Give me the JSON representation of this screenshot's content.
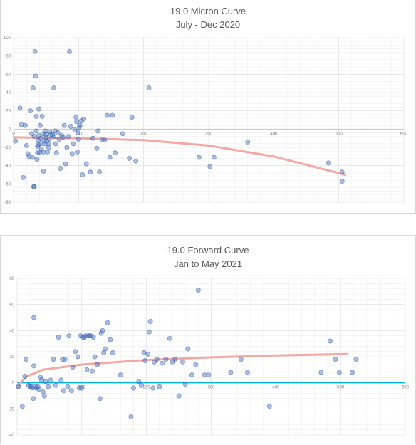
{
  "chart_data": [
    {
      "type": "scatter",
      "title": "19.0 Micron Curve",
      "subtitle": "July - Dec 2020",
      "xlim": [
        0,
        600
      ],
      "ylim": [
        -80,
        100
      ],
      "xticks": [
        "0",
        "100",
        "200",
        "300",
        "400",
        "500",
        "600"
      ],
      "yticks": [
        "100",
        "80",
        "60",
        "40",
        "20",
        "0",
        "-20",
        "-40",
        "-60",
        "-80"
      ],
      "grid": true,
      "marker_color": "#4472c4",
      "trendline_color": "#f4a7a3",
      "trendline": {
        "type": "polynomial",
        "x": [
          0,
          100,
          200,
          300,
          400,
          510
        ],
        "y": [
          -9,
          -10,
          -12,
          -18,
          -30,
          -50
        ]
      },
      "points": [
        [
          3,
          -13
        ],
        [
          10,
          23
        ],
        [
          12,
          5
        ],
        [
          15,
          -53
        ],
        [
          18,
          4
        ],
        [
          20,
          -18
        ],
        [
          22,
          -27
        ],
        [
          24,
          -30
        ],
        [
          26,
          20
        ],
        [
          28,
          -5
        ],
        [
          29,
          -31
        ],
        [
          30,
          45
        ],
        [
          31,
          -63
        ],
        [
          32,
          -63
        ],
        [
          32,
          -8
        ],
        [
          33,
          85
        ],
        [
          34,
          58
        ],
        [
          35,
          -2
        ],
        [
          35,
          14
        ],
        [
          36,
          -33
        ],
        [
          37,
          -26
        ],
        [
          37,
          -19
        ],
        [
          38,
          -17
        ],
        [
          38,
          -12
        ],
        [
          39,
          -7
        ],
        [
          39,
          22
        ],
        [
          40,
          -26
        ],
        [
          41,
          4
        ],
        [
          42,
          -10
        ],
        [
          42,
          -16
        ],
        [
          43,
          -22
        ],
        [
          44,
          14
        ],
        [
          45,
          -5
        ],
        [
          46,
          -25
        ],
        [
          46,
          -46
        ],
        [
          47,
          -13
        ],
        [
          48,
          -16
        ],
        [
          49,
          -2
        ],
        [
          50,
          -6
        ],
        [
          50,
          -9
        ],
        [
          51,
          -13
        ],
        [
          52,
          -25
        ],
        [
          53,
          -16
        ],
        [
          54,
          -20
        ],
        [
          55,
          -11
        ],
        [
          56,
          -3
        ],
        [
          57,
          -6
        ],
        [
          60,
          -6
        ],
        [
          62,
          -8
        ],
        [
          62,
          45
        ],
        [
          64,
          -2
        ],
        [
          65,
          -16
        ],
        [
          66,
          -26
        ],
        [
          68,
          -4
        ],
        [
          70,
          -11
        ],
        [
          72,
          -43
        ],
        [
          74,
          -7
        ],
        [
          76,
          -9
        ],
        [
          78,
          4
        ],
        [
          80,
          -38
        ],
        [
          82,
          -20
        ],
        [
          84,
          -8
        ],
        [
          86,
          85
        ],
        [
          88,
          3
        ],
        [
          90,
          -27
        ],
        [
          92,
          -16
        ],
        [
          94,
          -1
        ],
        [
          96,
          13
        ],
        [
          97,
          8
        ],
        [
          98,
          -25
        ],
        [
          99,
          -4
        ],
        [
          100,
          -11
        ],
        [
          101,
          2
        ],
        [
          102,
          4
        ],
        [
          104,
          9
        ],
        [
          106,
          -50
        ],
        [
          108,
          11
        ],
        [
          112,
          -38
        ],
        [
          118,
          -47
        ],
        [
          122,
          -10
        ],
        [
          128,
          -21
        ],
        [
          130,
          -2
        ],
        [
          132,
          -47
        ],
        [
          136,
          -12
        ],
        [
          140,
          -12
        ],
        [
          144,
          15
        ],
        [
          148,
          -31
        ],
        [
          152,
          15
        ],
        [
          156,
          -26
        ],
        [
          168,
          -5
        ],
        [
          178,
          -32
        ],
        [
          182,
          13
        ],
        [
          188,
          -35
        ],
        [
          208,
          45
        ],
        [
          285,
          -31
        ],
        [
          302,
          -41
        ],
        [
          308,
          -31
        ],
        [
          360,
          -14
        ],
        [
          484,
          -37
        ],
        [
          505,
          -47
        ],
        [
          505,
          -57
        ]
      ]
    },
    {
      "type": "scatter",
      "title": "19.0 Forward Curve",
      "subtitle": "Jan to May 2021",
      "xlim": [
        0,
        600
      ],
      "ylim": [
        -40,
        80
      ],
      "xticks": [
        "0",
        "100",
        "200",
        "300",
        "400",
        "500",
        "600"
      ],
      "yticks": [
        "80",
        "60",
        "40",
        "20",
        "0",
        "-20",
        "-40"
      ],
      "grid": true,
      "marker_color": "#4472c4",
      "trendline_color": "#f4a7a3",
      "zero_line_color": "#00b0f0",
      "trendline": {
        "type": "logarithmic",
        "x": [
          2,
          5,
          15,
          40,
          100,
          200,
          300,
          400,
          510
        ],
        "y": [
          -4,
          0,
          5,
          10,
          14,
          17.5,
          19.5,
          21,
          22
        ]
      },
      "points": [
        [
          2,
          -3
        ],
        [
          8,
          -18
        ],
        [
          12,
          5
        ],
        [
          14,
          18
        ],
        [
          18,
          -2
        ],
        [
          20,
          -3
        ],
        [
          22,
          -3
        ],
        [
          24,
          -4
        ],
        [
          25,
          -12
        ],
        [
          26,
          50
        ],
        [
          26,
          13
        ],
        [
          28,
          -3
        ],
        [
          30,
          -4
        ],
        [
          32,
          -3
        ],
        [
          34,
          -5
        ],
        [
          36,
          4
        ],
        [
          38,
          2
        ],
        [
          40,
          -7
        ],
        [
          42,
          -10
        ],
        [
          44,
          1
        ],
        [
          48,
          -3
        ],
        [
          52,
          2
        ],
        [
          56,
          18
        ],
        [
          60,
          -2
        ],
        [
          64,
          35
        ],
        [
          68,
          2
        ],
        [
          70,
          18
        ],
        [
          72,
          -6
        ],
        [
          74,
          18
        ],
        [
          78,
          -3
        ],
        [
          80,
          36
        ],
        [
          84,
          -6
        ],
        [
          86,
          12
        ],
        [
          90,
          24
        ],
        [
          94,
          20
        ],
        [
          96,
          -4
        ],
        [
          98,
          36
        ],
        [
          100,
          -4
        ],
        [
          102,
          35
        ],
        [
          104,
          35
        ],
        [
          106,
          36
        ],
        [
          108,
          10
        ],
        [
          110,
          36
        ],
        [
          112,
          36
        ],
        [
          114,
          36
        ],
        [
          116,
          9
        ],
        [
          118,
          35
        ],
        [
          120,
          20
        ],
        [
          124,
          14
        ],
        [
          128,
          -12
        ],
        [
          130,
          38
        ],
        [
          132,
          40
        ],
        [
          134,
          23
        ],
        [
          136,
          26
        ],
        [
          140,
          46
        ],
        [
          144,
          33
        ],
        [
          148,
          23
        ],
        [
          160,
          6
        ],
        [
          176,
          -26
        ],
        [
          180,
          -4
        ],
        [
          188,
          1
        ],
        [
          192,
          -2
        ],
        [
          196,
          23
        ],
        [
          198,
          17
        ],
        [
          202,
          22
        ],
        [
          204,
          39
        ],
        [
          206,
          47
        ],
        [
          210,
          -4
        ],
        [
          212,
          16
        ],
        [
          216,
          18
        ],
        [
          220,
          -3
        ],
        [
          224,
          15
        ],
        [
          230,
          18
        ],
        [
          236,
          34
        ],
        [
          240,
          16
        ],
        [
          244,
          18
        ],
        [
          250,
          -10
        ],
        [
          256,
          16
        ],
        [
          260,
          -1
        ],
        [
          264,
          26
        ],
        [
          270,
          6
        ],
        [
          276,
          14
        ],
        [
          280,
          71
        ],
        [
          290,
          6
        ],
        [
          296,
          6
        ],
        [
          330,
          8
        ],
        [
          346,
          18
        ],
        [
          356,
          8
        ],
        [
          390,
          -18
        ],
        [
          470,
          8
        ],
        [
          484,
          32
        ],
        [
          492,
          18
        ],
        [
          498,
          8
        ],
        [
          518,
          8
        ],
        [
          524,
          18
        ]
      ]
    }
  ]
}
